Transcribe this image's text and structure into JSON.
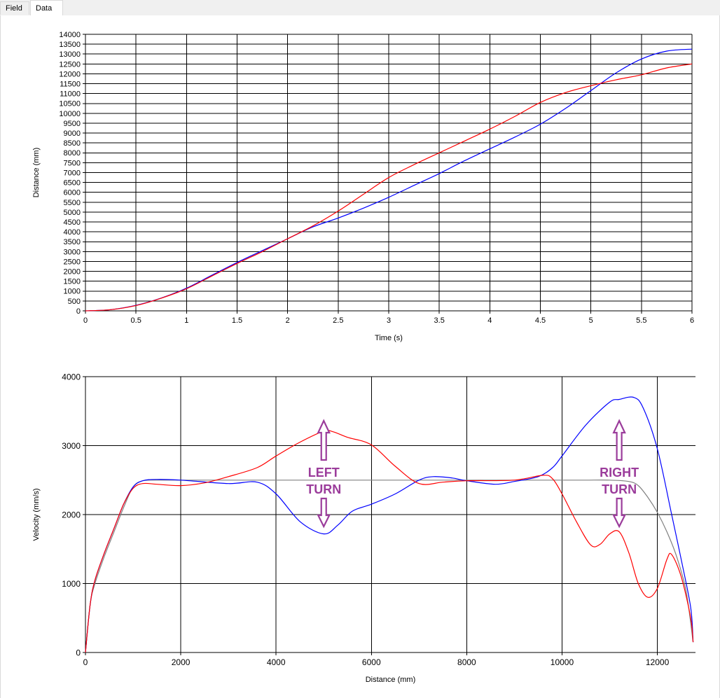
{
  "tabs": [
    {
      "label": "Field",
      "active": false
    },
    {
      "label": "Data",
      "active": true
    }
  ],
  "chart_data": [
    {
      "type": "line",
      "xlabel": "Time (s)",
      "ylabel": "Distance (mm)",
      "xlim": [
        0,
        6
      ],
      "ylim": [
        0,
        14000
      ],
      "xticks": [
        "0",
        "0.5",
        "1",
        "1.5",
        "2",
        "2.5",
        "3",
        "3.5",
        "4",
        "4.5",
        "5",
        "5.5",
        "6"
      ],
      "yticks": [
        "0",
        "500",
        "1000",
        "1500",
        "2000",
        "2500",
        "3000",
        "3500",
        "4000",
        "4500",
        "5000",
        "5500",
        "6000",
        "6500",
        "7000",
        "7500",
        "8000",
        "8500",
        "9000",
        "9500",
        "10000",
        "10500",
        "11000",
        "11500",
        "12000",
        "12500",
        "13000",
        "13500",
        "14000"
      ],
      "grid": true,
      "series": [
        {
          "color": "#0000ff",
          "x": [
            0,
            0.25,
            0.5,
            0.75,
            1,
            1.25,
            1.5,
            1.75,
            2,
            2.25,
            2.5,
            2.75,
            3,
            3.25,
            3.5,
            3.75,
            4,
            4.25,
            4.5,
            4.75,
            5,
            5.25,
            5.5,
            5.75,
            6
          ],
          "y": [
            0,
            60,
            280,
            650,
            1150,
            1800,
            2450,
            3050,
            3650,
            4250,
            4700,
            5200,
            5750,
            6350,
            6950,
            7600,
            8200,
            8800,
            9450,
            10250,
            11150,
            12050,
            12750,
            13150,
            13250
          ]
        },
        {
          "color": "#ff0000",
          "x": [
            0,
            0.25,
            0.5,
            0.75,
            1,
            1.25,
            1.5,
            1.75,
            2,
            2.25,
            2.5,
            2.75,
            3,
            3.25,
            3.5,
            3.75,
            4,
            4.25,
            4.5,
            4.75,
            5,
            5.25,
            5.5,
            5.75,
            6
          ],
          "y": [
            0,
            60,
            270,
            640,
            1120,
            1760,
            2400,
            3000,
            3650,
            4300,
            5050,
            5900,
            6750,
            7400,
            8000,
            8600,
            9200,
            9850,
            10550,
            11050,
            11400,
            11700,
            11950,
            12300,
            12500
          ]
        }
      ]
    },
    {
      "type": "line",
      "xlabel": "Distance (mm)",
      "ylabel": "Velocity (mm/s)",
      "xlim": [
        0,
        12800
      ],
      "ylim": [
        0,
        4000
      ],
      "xticks": [
        "0",
        "2000",
        "4000",
        "6000",
        "8000",
        "10000",
        "12000"
      ],
      "yticks": [
        "0",
        "1000",
        "2000",
        "3000",
        "4000"
      ],
      "grid": true,
      "series": [
        {
          "color": "#808080",
          "x": [
            0,
            100,
            200,
            400,
            600,
            800,
            1000,
            1200,
            1500,
            2000,
            3000,
            4000,
            5000,
            6000,
            7000,
            8000,
            9000,
            10000,
            10500,
            11000,
            11400,
            11600,
            11800,
            12000,
            12200,
            12400,
            12600,
            12750
          ],
          "y": [
            0,
            700,
            1000,
            1400,
            1750,
            2100,
            2400,
            2490,
            2500,
            2500,
            2500,
            2500,
            2500,
            2500,
            2500,
            2500,
            2500,
            2500,
            2500,
            2500,
            2480,
            2420,
            2250,
            2030,
            1750,
            1400,
            900,
            150
          ]
        },
        {
          "color": "#0000ff",
          "x": [
            0,
            100,
            200,
            400,
            600,
            800,
            1000,
            1200,
            1500,
            2000,
            3000,
            3600,
            4000,
            4500,
            5000,
            5300,
            5600,
            6000,
            6500,
            7000,
            7300,
            7700,
            8000,
            8600,
            9000,
            9500,
            9800,
            10000,
            10500,
            11000,
            11200,
            11500,
            11700,
            12000,
            12300,
            12500,
            12700,
            12750
          ],
          "y": [
            0,
            700,
            1050,
            1450,
            1800,
            2150,
            2400,
            2490,
            2510,
            2500,
            2450,
            2470,
            2300,
            1900,
            1720,
            1850,
            2050,
            2150,
            2300,
            2500,
            2550,
            2530,
            2490,
            2440,
            2480,
            2550,
            2680,
            2850,
            3300,
            3630,
            3670,
            3700,
            3550,
            2950,
            2000,
            1350,
            650,
            150
          ]
        },
        {
          "color": "#ff0000",
          "x": [
            0,
            100,
            200,
            400,
            600,
            800,
            1000,
            1200,
            1500,
            2000,
            2500,
            3000,
            3600,
            4000,
            4500,
            5000,
            5200,
            5500,
            6000,
            6500,
            7000,
            7500,
            8000,
            9000,
            9600,
            9800,
            10000,
            10300,
            10600,
            10800,
            11000,
            11200,
            11400,
            11600,
            11800,
            12000,
            12200,
            12300,
            12500,
            12700,
            12750
          ],
          "y": [
            0,
            700,
            1050,
            1450,
            1800,
            2150,
            2380,
            2450,
            2440,
            2420,
            2460,
            2550,
            2680,
            2850,
            3050,
            3210,
            3200,
            3120,
            3010,
            2700,
            2450,
            2470,
            2490,
            2500,
            2570,
            2520,
            2300,
            1900,
            1560,
            1570,
            1720,
            1750,
            1450,
            1000,
            800,
            930,
            1350,
            1420,
            1100,
            500,
            150
          ]
        }
      ],
      "annotations": [
        {
          "text_lines": [
            "LEFT",
            "TURN"
          ],
          "x": 5000,
          "y": 2500
        },
        {
          "text_lines": [
            "RIGHT",
            "TURN"
          ],
          "x": 11200,
          "y": 2500
        }
      ]
    }
  ]
}
